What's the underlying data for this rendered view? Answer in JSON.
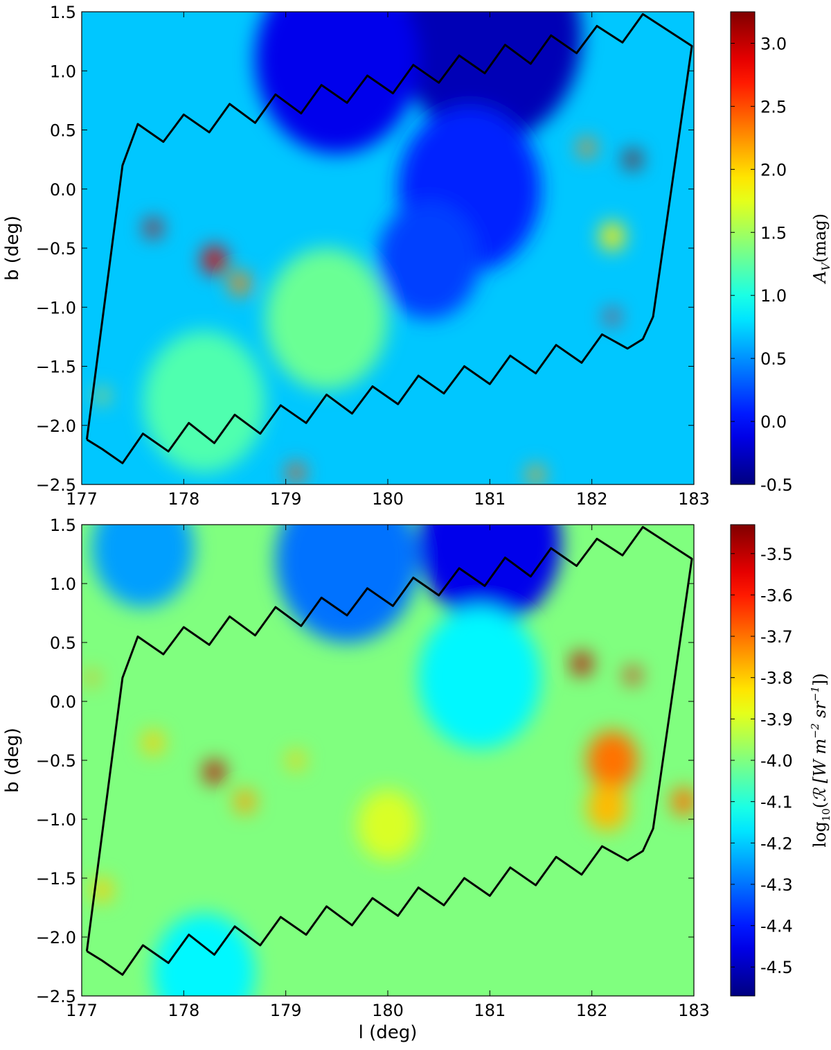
{
  "chart_data": [
    {
      "type": "heatmap",
      "title": "",
      "xlabel": "",
      "ylabel": "b (deg)",
      "xlim": [
        177,
        183
      ],
      "ylim": [
        -2.5,
        1.5
      ],
      "x_ticks": [
        "177",
        "178",
        "179",
        "180",
        "181",
        "182",
        "183"
      ],
      "y_ticks": [
        "1.5",
        "1.0",
        "0.5",
        "0.0",
        "−0.5",
        "−1.0",
        "−1.5",
        "−2.0",
        "−2.5"
      ],
      "colorbar": {
        "label": "A_V (mag)",
        "range": [
          -0.5,
          3.25
        ],
        "ticks": [
          "3.0",
          "2.5",
          "2.0",
          "1.5",
          "1.0",
          "0.5",
          "0.0",
          "-0.5"
        ],
        "colormap": "jet"
      },
      "background_value": 0.7,
      "features": [
        {
          "l": 177.7,
          "b": -0.33,
          "value": 3.0,
          "size": 0.08
        },
        {
          "l": 178.3,
          "b": -0.6,
          "value": 2.9,
          "size": 0.12
        },
        {
          "l": 178.55,
          "b": -0.8,
          "value": 2.3,
          "size": 0.1
        },
        {
          "l": 182.4,
          "b": 0.25,
          "value": 3.2,
          "size": 0.08
        },
        {
          "l": 181.95,
          "b": 0.35,
          "value": 2.3,
          "size": 0.08
        },
        {
          "l": 182.2,
          "b": -1.08,
          "value": 2.8,
          "size": 0.06
        },
        {
          "l": 182.2,
          "b": -0.4,
          "value": 1.9,
          "size": 0.12
        },
        {
          "l": 179.1,
          "b": -2.4,
          "value": 2.5,
          "size": 0.08
        },
        {
          "l": 181.45,
          "b": -2.42,
          "value": 2.2,
          "size": 0.08
        },
        {
          "l": 177.2,
          "b": -1.75,
          "value": 2.0,
          "size": 0.06
        },
        {
          "l": 181.0,
          "b": 1.3,
          "value": -0.3,
          "size": 0.9
        },
        {
          "l": 179.5,
          "b": 1.1,
          "value": -0.1,
          "size": 0.8
        },
        {
          "l": 180.8,
          "b": 0.0,
          "value": 0.1,
          "size": 0.7
        },
        {
          "l": 180.4,
          "b": -0.6,
          "value": 0.2,
          "size": 0.5
        },
        {
          "l": 178.2,
          "b": -1.8,
          "value": 1.2,
          "size": 0.6
        },
        {
          "l": 179.4,
          "b": -1.1,
          "value": 1.3,
          "size": 0.6
        }
      ]
    },
    {
      "type": "heatmap",
      "title": "",
      "xlabel": "l (deg)",
      "ylabel": "b (deg)",
      "xlim": [
        177,
        183
      ],
      "ylim": [
        -2.5,
        1.5
      ],
      "x_ticks": [
        "177",
        "178",
        "179",
        "180",
        "181",
        "182",
        "183"
      ],
      "y_ticks": [
        "1.5",
        "1.0",
        "0.5",
        "0.0",
        "−0.5",
        "−1.0",
        "−1.5",
        "−2.0",
        "−2.5"
      ],
      "colorbar": {
        "label": "log10(R [W m^-2 sr^-1])",
        "range": [
          -4.57,
          -3.43
        ],
        "ticks": [
          "-3.5",
          "-3.6",
          "-3.7",
          "-3.8",
          "-3.9",
          "-4.0",
          "-4.1",
          "-4.2",
          "-4.3",
          "-4.4",
          "-4.5"
        ],
        "colormap": "jet"
      },
      "background_value": -4.0,
      "features": [
        {
          "l": 178.3,
          "b": -0.6,
          "value": -3.5,
          "size": 0.1
        },
        {
          "l": 178.6,
          "b": -0.85,
          "value": -3.75,
          "size": 0.1
        },
        {
          "l": 177.7,
          "b": -0.35,
          "value": -3.8,
          "size": 0.1
        },
        {
          "l": 181.9,
          "b": 0.32,
          "value": -3.5,
          "size": 0.1
        },
        {
          "l": 182.4,
          "b": 0.22,
          "value": -3.55,
          "size": 0.07
        },
        {
          "l": 182.2,
          "b": -0.5,
          "value": -3.7,
          "size": 0.25
        },
        {
          "l": 182.15,
          "b": -0.9,
          "value": -3.78,
          "size": 0.2
        },
        {
          "l": 182.9,
          "b": -0.85,
          "value": -3.7,
          "size": 0.12
        },
        {
          "l": 179.1,
          "b": -0.5,
          "value": -3.8,
          "size": 0.08
        },
        {
          "l": 177.1,
          "b": 0.2,
          "value": -3.75,
          "size": 0.06
        },
        {
          "l": 177.2,
          "b": -1.6,
          "value": -3.8,
          "size": 0.1
        },
        {
          "l": 181.0,
          "b": 1.35,
          "value": -4.45,
          "size": 0.7
        },
        {
          "l": 179.6,
          "b": 1.2,
          "value": -4.3,
          "size": 0.7
        },
        {
          "l": 177.6,
          "b": 1.3,
          "value": -4.25,
          "size": 0.5
        },
        {
          "l": 180.9,
          "b": 0.2,
          "value": -4.15,
          "size": 0.6
        },
        {
          "l": 180.0,
          "b": -1.05,
          "value": -3.9,
          "size": 0.3
        },
        {
          "l": 178.2,
          "b": -2.3,
          "value": -4.15,
          "size": 0.5
        }
      ]
    }
  ],
  "footprint_polygon": [
    [
      177.05,
      -2.12
    ],
    [
      177.2,
      -2.2
    ],
    [
      177.4,
      -2.32
    ],
    [
      177.6,
      -2.07
    ],
    [
      177.85,
      -2.22
    ],
    [
      178.05,
      -1.98
    ],
    [
      178.3,
      -2.15
    ],
    [
      178.5,
      -1.91
    ],
    [
      178.75,
      -2.07
    ],
    [
      178.95,
      -1.83
    ],
    [
      179.2,
      -1.98
    ],
    [
      179.4,
      -1.74
    ],
    [
      179.65,
      -1.9
    ],
    [
      179.85,
      -1.67
    ],
    [
      180.1,
      -1.82
    ],
    [
      180.3,
      -1.58
    ],
    [
      180.55,
      -1.73
    ],
    [
      180.75,
      -1.5
    ],
    [
      181.0,
      -1.65
    ],
    [
      181.2,
      -1.41
    ],
    [
      181.45,
      -1.56
    ],
    [
      181.65,
      -1.32
    ],
    [
      181.9,
      -1.47
    ],
    [
      182.1,
      -1.23
    ],
    [
      182.35,
      -1.35
    ],
    [
      182.5,
      -1.27
    ],
    [
      182.6,
      -1.08
    ],
    [
      182.98,
      1.21
    ],
    [
      182.5,
      1.48
    ],
    [
      182.3,
      1.24
    ],
    [
      182.05,
      1.38
    ],
    [
      181.85,
      1.15
    ],
    [
      181.6,
      1.3
    ],
    [
      181.4,
      1.06
    ],
    [
      181.15,
      1.22
    ],
    [
      180.95,
      0.98
    ],
    [
      180.7,
      1.13
    ],
    [
      180.5,
      0.9
    ],
    [
      180.25,
      1.05
    ],
    [
      180.05,
      0.81
    ],
    [
      179.8,
      0.96
    ],
    [
      179.6,
      0.73
    ],
    [
      179.35,
      0.88
    ],
    [
      179.15,
      0.64
    ],
    [
      178.9,
      0.8
    ],
    [
      178.7,
      0.56
    ],
    [
      178.45,
      0.72
    ],
    [
      178.25,
      0.48
    ],
    [
      178.0,
      0.63
    ],
    [
      177.8,
      0.4
    ],
    [
      177.55,
      0.55
    ],
    [
      177.4,
      0.2
    ],
    [
      177.05,
      -2.12
    ]
  ]
}
